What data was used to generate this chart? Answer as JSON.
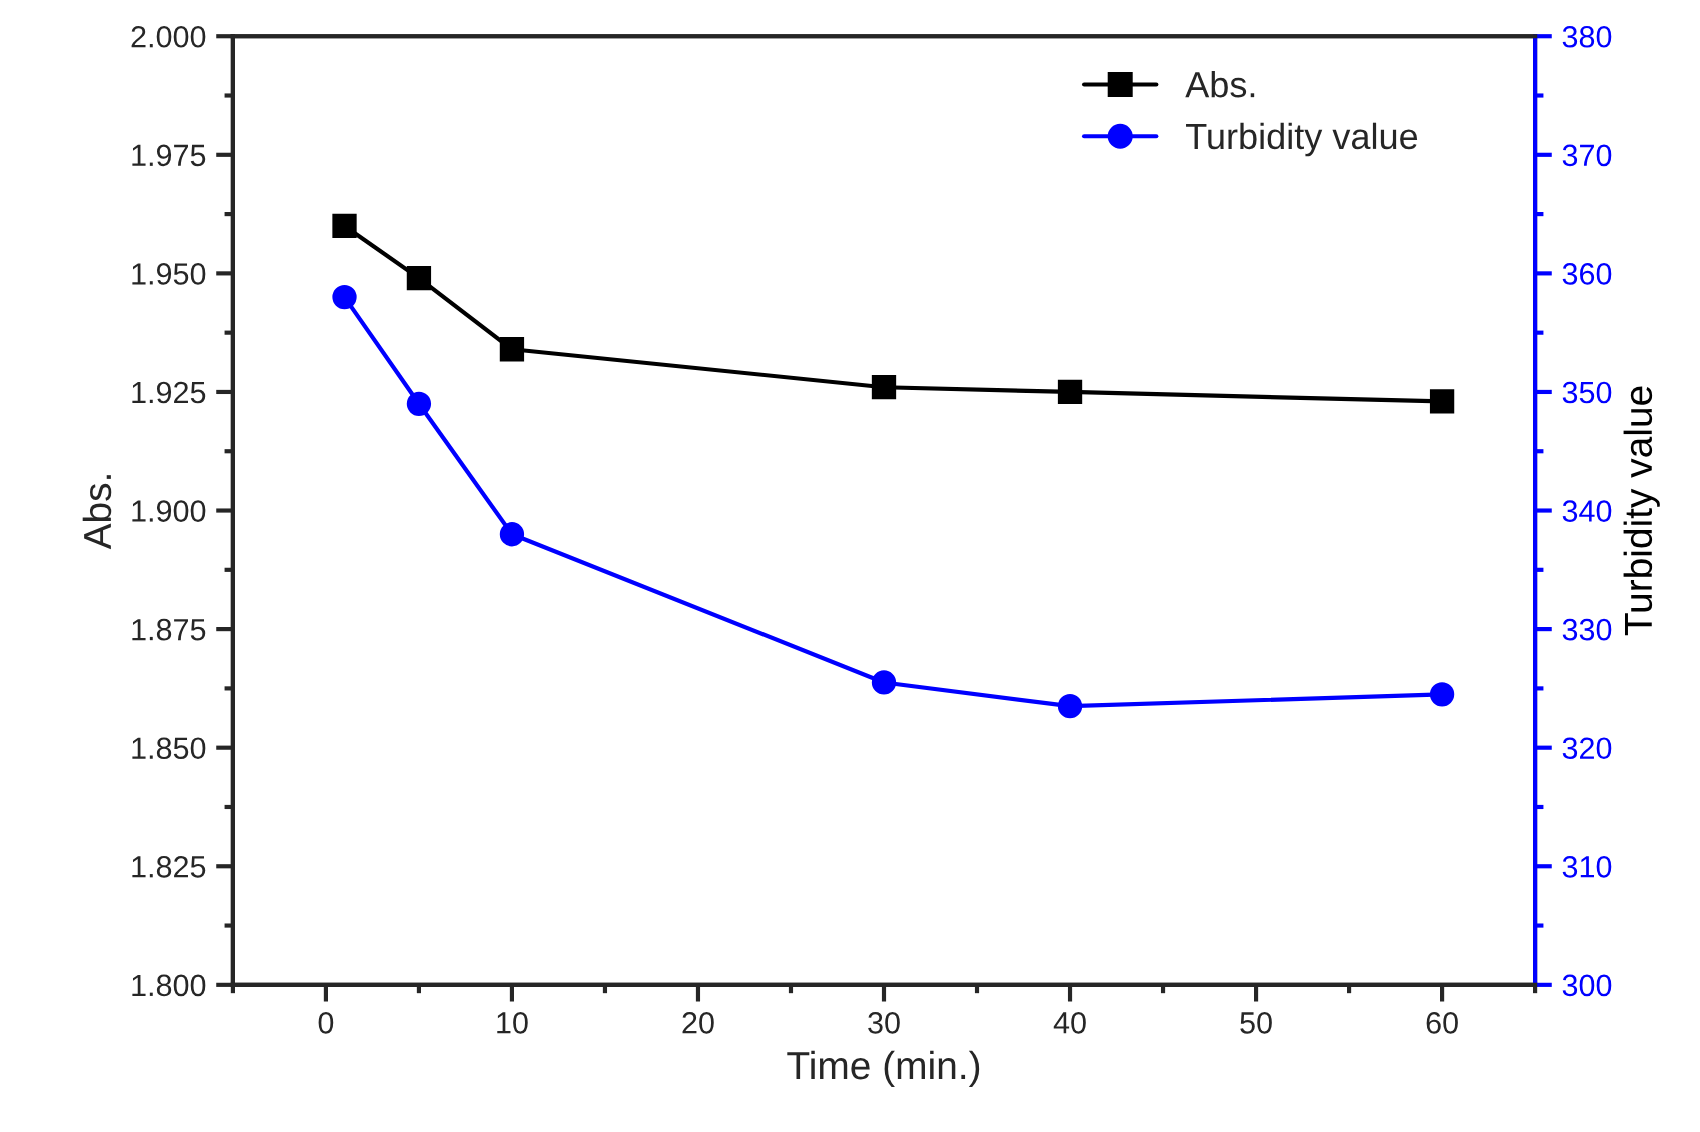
{
  "chart_data": {
    "type": "line",
    "xlabel": "Time (min.)",
    "ylabel": "Abs.",
    "y2label": "Turbidity value",
    "x": [
      1,
      5,
      10,
      30,
      40,
      60
    ],
    "series": [
      {
        "name": "Abs.",
        "color": "#000000",
        "marker": "square",
        "values": [
          1.96,
          1.949,
          1.934,
          1.926,
          1.925,
          1.923
        ]
      },
      {
        "name": "Turbidity value",
        "color": "#0000ff",
        "marker": "circle",
        "axis": "y2",
        "values": [
          358,
          349,
          338,
          325.5,
          323.5,
          324.5
        ]
      }
    ],
    "xlim": [
      -5,
      65
    ],
    "xticks": [
      0,
      10,
      20,
      30,
      40,
      50,
      60
    ],
    "ylim": [
      1.8,
      2.0
    ],
    "yticks": [
      {
        "value": 1.8,
        "label": "1.800"
      },
      {
        "value": 1.825,
        "label": "1.825"
      },
      {
        "value": 1.85,
        "label": "1.850"
      },
      {
        "value": 1.875,
        "label": "1.875"
      },
      {
        "value": 1.9,
        "label": "1.900"
      },
      {
        "value": 1.925,
        "label": "1.925"
      },
      {
        "value": 1.95,
        "label": "1.950"
      },
      {
        "value": 1.975,
        "label": "1.975"
      },
      {
        "value": 2.0,
        "label": "2.000"
      }
    ],
    "y2lim": [
      300,
      380
    ],
    "y2ticks": [
      300,
      310,
      320,
      330,
      340,
      350,
      360,
      370,
      380
    ],
    "legend": "top right",
    "grid": false,
    "line_style": "solid"
  }
}
